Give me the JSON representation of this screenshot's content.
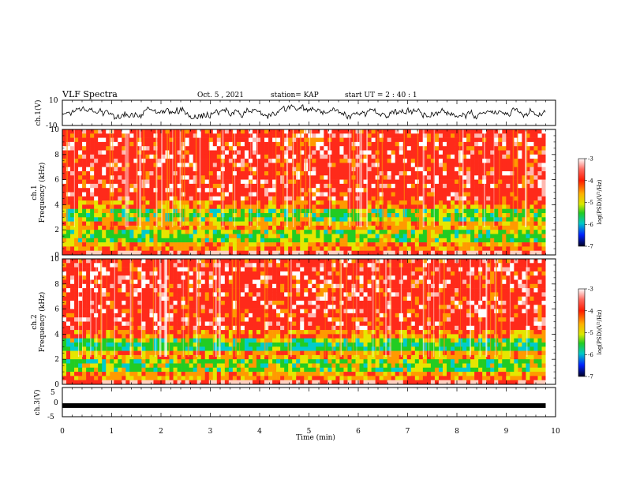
{
  "header": {
    "title": "VLF Spectra",
    "date": "Oct. 5 , 2021",
    "station": "station= KAP",
    "start": "start UT = 2 : 40 : 1"
  },
  "chart_data": [
    {
      "type": "line",
      "name": "ch1-waveform",
      "ylabel": "ch.1(V)",
      "ylim": [
        -10,
        10
      ],
      "yticks": [
        "10",
        "-10"
      ],
      "xlim": [
        0,
        10
      ],
      "color": "#000000"
    },
    {
      "type": "heatmap",
      "name": "ch1-spectrogram",
      "ylabel": "ch.1\nFrequency (kHz)",
      "ylim": [
        0,
        10
      ],
      "yticks": [
        "0",
        "2",
        "4",
        "6",
        "8",
        "10"
      ],
      "xlim": [
        0,
        10
      ],
      "data_end_min": 9.8,
      "colorbar": {
        "label": "log(PSD)(V²/Hz)",
        "range": [
          -7,
          -3
        ],
        "ticks": [
          "-3",
          "-4",
          "-5",
          "-6",
          "-7"
        ]
      }
    },
    {
      "type": "heatmap",
      "name": "ch2-spectrogram",
      "ylabel": "ch.2\nFrequency (kHz)",
      "ylim": [
        0,
        10
      ],
      "yticks": [
        "0",
        "2",
        "4",
        "6",
        "8",
        "10"
      ],
      "xlim": [
        0,
        10
      ],
      "data_end_min": 9.8,
      "colorbar": {
        "label": "log(PSD)(V²/Hz)",
        "range": [
          -7,
          -3
        ],
        "ticks": [
          "-3",
          "-4",
          "-5",
          "-6",
          "-7"
        ]
      }
    },
    {
      "type": "line",
      "name": "ch3-waveform",
      "ylabel": "ch.3(V)",
      "ylim": [
        -5,
        5
      ],
      "yticks": [
        "5",
        "0",
        "-5"
      ],
      "xlim": [
        0,
        10
      ],
      "level": -1.2,
      "color": "#000000"
    }
  ],
  "xaxis": {
    "label": "Time (min)",
    "ticks": [
      "0",
      "1",
      "2",
      "3",
      "4",
      "5",
      "6",
      "7",
      "8",
      "9",
      "10"
    ]
  },
  "colors": {
    "red": "#ff2a1a",
    "orange": "#ff9a00",
    "yellow": "#e6e600",
    "green": "#22cc22",
    "cyan": "#00cccc",
    "blue": "#0022ff",
    "navy": "#000033"
  }
}
